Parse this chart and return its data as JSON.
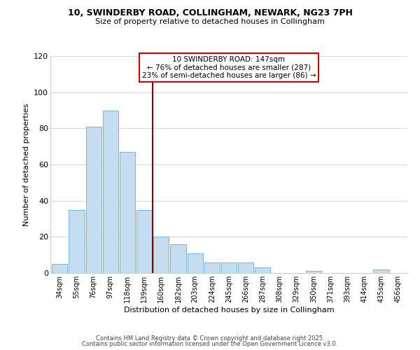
{
  "title": "10, SWINDERBY ROAD, COLLINGHAM, NEWARK, NG23 7PH",
  "subtitle": "Size of property relative to detached houses in Collingham",
  "xlabel": "Distribution of detached houses by size in Collingham",
  "ylabel": "Number of detached properties",
  "bar_color": "#c5ddf0",
  "bar_edge_color": "#7fb3d8",
  "categories": [
    "34sqm",
    "55sqm",
    "76sqm",
    "97sqm",
    "118sqm",
    "139sqm",
    "160sqm",
    "182sqm",
    "203sqm",
    "224sqm",
    "245sqm",
    "266sqm",
    "287sqm",
    "308sqm",
    "329sqm",
    "350sqm",
    "371sqm",
    "393sqm",
    "414sqm",
    "435sqm",
    "456sqm"
  ],
  "values": [
    5,
    35,
    81,
    90,
    67,
    35,
    20,
    16,
    11,
    6,
    6,
    6,
    3,
    0,
    0,
    1,
    0,
    0,
    0,
    2,
    0
  ],
  "ylim": [
    0,
    120
  ],
  "yticks": [
    0,
    20,
    40,
    60,
    80,
    100,
    120
  ],
  "vline_x": 5.5,
  "vline_color": "#8b0000",
  "annotation_text": "10 SWINDERBY ROAD: 147sqm\n← 76% of detached houses are smaller (287)\n23% of semi-detached houses are larger (86) →",
  "footer_line1": "Contains HM Land Registry data © Crown copyright and database right 2025.",
  "footer_line2": "Contains public sector information licensed under the Open Government Licence v3.0.",
  "background_color": "#ffffff",
  "grid_color": "#d8d8d8"
}
